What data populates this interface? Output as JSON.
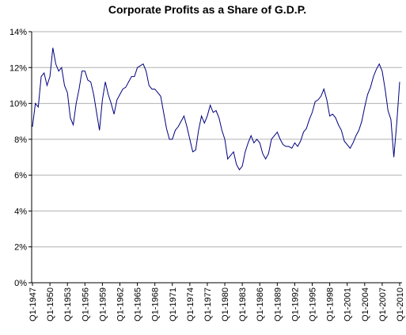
{
  "chart_data": {
    "type": "line",
    "title": "Corporate Profits as a Share of G.D.P.",
    "categories": [
      "Q1-1947",
      null,
      null,
      null,
      null,
      null,
      "Q1-1950",
      null,
      null,
      null,
      null,
      null,
      "Q1-1953",
      null,
      null,
      null,
      null,
      null,
      "Q1-1956",
      null,
      null,
      null,
      null,
      null,
      "Q1-1959",
      null,
      null,
      null,
      null,
      null,
      "Q1-1962",
      null,
      null,
      null,
      null,
      null,
      "Q1-1965",
      null,
      null,
      null,
      null,
      null,
      "Q1-1968",
      null,
      null,
      null,
      null,
      null,
      "Q1-1971",
      null,
      null,
      null,
      null,
      null,
      "Q1-1974",
      null,
      null,
      null,
      null,
      null,
      "Q1-1977",
      null,
      null,
      null,
      null,
      null,
      "Q1-1980",
      null,
      null,
      null,
      null,
      null,
      "Q1-1983",
      null,
      null,
      null,
      null,
      null,
      "Q1-1986",
      null,
      null,
      null,
      null,
      null,
      "Q1-1989",
      null,
      null,
      null,
      null,
      null,
      "Q1-1992",
      null,
      null,
      null,
      null,
      null,
      "Q1-1995",
      null,
      null,
      null,
      null,
      null,
      "Q1-1998",
      null,
      null,
      null,
      null,
      null,
      "Q1-2001",
      null,
      null,
      null,
      null,
      null,
      "Q1-2004",
      null,
      null,
      null,
      null,
      null,
      "Q1-2007",
      null,
      null,
      null,
      null,
      null,
      "Q1-2010"
    ],
    "values": [
      8.7,
      10.0,
      9.8,
      11.5,
      11.7,
      11.0,
      11.5,
      13.1,
      12.2,
      11.8,
      12.0,
      11.0,
      10.6,
      9.2,
      8.8,
      10.0,
      10.8,
      11.8,
      11.8,
      11.3,
      11.2,
      10.5,
      9.5,
      8.5,
      10.2,
      11.2,
      10.5,
      10.0,
      9.4,
      10.2,
      10.5,
      10.8,
      10.9,
      11.2,
      11.5,
      11.5,
      12.0,
      12.1,
      12.2,
      11.8,
      11.0,
      10.8,
      10.8,
      10.6,
      10.4,
      9.5,
      8.6,
      8.0,
      8.0,
      8.5,
      8.7,
      9.0,
      9.3,
      8.7,
      8.0,
      7.3,
      7.4,
      8.5,
      9.3,
      8.9,
      9.3,
      9.9,
      9.5,
      9.6,
      9.2,
      8.5,
      8.0,
      6.9,
      7.1,
      7.3,
      6.6,
      6.3,
      6.5,
      7.3,
      7.8,
      8.2,
      7.8,
      8.0,
      7.8,
      7.2,
      6.9,
      7.2,
      8.0,
      8.2,
      8.4,
      8.0,
      7.7,
      7.6,
      7.6,
      7.5,
      7.8,
      7.6,
      7.9,
      8.4,
      8.6,
      9.1,
      9.5,
      10.1,
      10.2,
      10.4,
      10.8,
      10.2,
      9.3,
      9.4,
      9.2,
      8.8,
      8.5,
      7.9,
      7.7,
      7.5,
      7.8,
      8.2,
      8.5,
      9.0,
      9.8,
      10.5,
      10.9,
      11.5,
      11.9,
      12.2,
      11.8,
      10.8,
      9.6,
      9.1,
      7.0,
      8.9,
      11.2
    ],
    "color": "#000080",
    "ylim": [
      0,
      14
    ],
    "yticks": [
      {
        "value": 0,
        "label": "0%"
      },
      {
        "value": 2,
        "label": "2%"
      },
      {
        "value": 4,
        "label": "4%"
      },
      {
        "value": 6,
        "label": "6%"
      },
      {
        "value": 8,
        "label": "8%"
      },
      {
        "value": 10,
        "label": "10%"
      },
      {
        "value": 12,
        "label": "12%"
      },
      {
        "value": 14,
        "label": "14%"
      }
    ],
    "grid": true
  }
}
